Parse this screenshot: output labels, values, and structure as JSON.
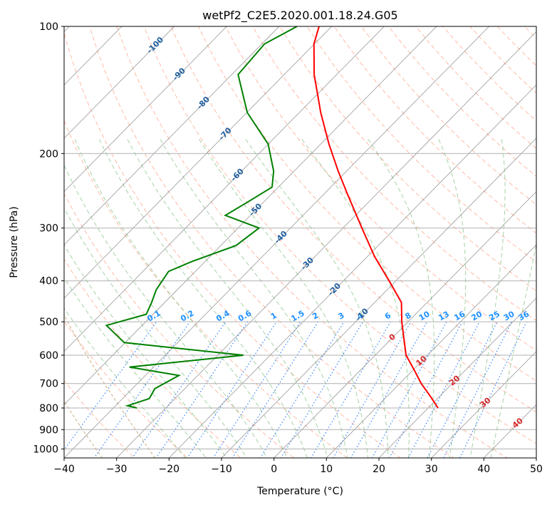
{
  "chart_data": {
    "type": "line",
    "chart_kind": "skew-T log-p diagram",
    "title": "wetPf2_C2E5.2020.001.18.24.G05",
    "xlabel": "Temperature (°C)",
    "ylabel": "Pressure (hPa)",
    "xlim": [
      -40,
      50
    ],
    "ylim": [
      1050,
      100
    ],
    "y_scale": "log",
    "x_ticks": [
      "−40",
      "−30",
      "−20",
      "−10",
      "0",
      "10",
      "20",
      "30",
      "40",
      "50"
    ],
    "x_tick_values": [
      -40,
      -30,
      -20,
      -10,
      0,
      10,
      20,
      30,
      40,
      50
    ],
    "y_ticks": [
      "100",
      "200",
      "300",
      "400",
      "500",
      "600",
      "700",
      "800",
      "900",
      "1000"
    ],
    "y_tick_values": [
      100,
      200,
      300,
      400,
      500,
      600,
      700,
      800,
      900,
      1000
    ],
    "grid": true,
    "colors": {
      "temperature": "#ff0000",
      "dewpoint": "#008000",
      "dry_adiabat": "#ff8c69",
      "moist_adiabat": "#7fbf7f",
      "mixing_ratio": "#1f77ff",
      "isotherm": "#808080",
      "theta_e": "#d2b48c",
      "isotherm_label": "#1f5f9f",
      "mixing_ratio_label": "#1e90ff",
      "adiabat_label": "#d62728"
    },
    "isotherm_labels": [
      {
        "text": "-100",
        "t": -100,
        "p": 111
      },
      {
        "text": "-90",
        "t": -90,
        "p": 130
      },
      {
        "text": "-80",
        "t": -80,
        "p": 152
      },
      {
        "text": "-70",
        "t": -70,
        "p": 180
      },
      {
        "text": "-60",
        "t": -60,
        "p": 225
      },
      {
        "text": "-50",
        "t": -50,
        "p": 272
      },
      {
        "text": "-40",
        "t": -40,
        "p": 316
      },
      {
        "text": "-30",
        "t": -30,
        "p": 365
      },
      {
        "text": "-20",
        "t": -20,
        "p": 420
      },
      {
        "text": "-10",
        "t": -10,
        "p": 482
      }
    ],
    "mixing_ratio_labels": [
      "0.1",
      "0.2",
      "0.4",
      "0.6",
      "1",
      "1.5",
      "2",
      "3",
      "4",
      "6",
      "8",
      "10",
      "13",
      "16",
      "20",
      "25",
      "30",
      "36"
    ],
    "mixing_ratio_values": [
      0.1,
      0.2,
      0.4,
      0.6,
      1,
      1.5,
      2,
      3,
      4,
      6,
      8,
      10,
      13,
      16,
      20,
      25,
      30,
      36
    ],
    "adiabat_labels": [
      {
        "text": "0",
        "t": 0,
        "p": 545
      },
      {
        "text": "10",
        "t": 10,
        "p": 620
      },
      {
        "text": "20",
        "t": 20,
        "p": 690
      },
      {
        "text": "30",
        "t": 30,
        "p": 778
      },
      {
        "text": "40",
        "t": 40,
        "p": 870
      }
    ],
    "series": [
      {
        "key": "temperature",
        "points": [
          {
            "p": 100,
            "t": -72.4
          },
          {
            "p": 110,
            "t": -70.1
          },
          {
            "p": 130,
            "t": -64.3
          },
          {
            "p": 160,
            "t": -55.9
          },
          {
            "p": 190,
            "t": -48.4
          },
          {
            "p": 220,
            "t": -41.6
          },
          {
            "p": 250,
            "t": -35.4
          },
          {
            "p": 300,
            "t": -26.4
          },
          {
            "p": 350,
            "t": -18.7
          },
          {
            "p": 400,
            "t": -11.3
          },
          {
            "p": 450,
            "t": -4.9
          },
          {
            "p": 500,
            "t": -1.2
          },
          {
            "p": 550,
            "t": 2.5
          },
          {
            "p": 600,
            "t": 5.9
          },
          {
            "p": 650,
            "t": 10.2
          },
          {
            "p": 700,
            "t": 14.1
          },
          {
            "p": 750,
            "t": 18.2
          },
          {
            "p": 800,
            "t": 21.9
          }
        ]
      },
      {
        "key": "dewpoint",
        "points": [
          {
            "p": 100,
            "t": -76.6
          },
          {
            "p": 110,
            "t": -79.5
          },
          {
            "p": 130,
            "t": -78.8
          },
          {
            "p": 160,
            "t": -69.9
          },
          {
            "p": 190,
            "t": -60.0
          },
          {
            "p": 220,
            "t": -53.9
          },
          {
            "p": 240,
            "t": -51.2
          },
          {
            "p": 260,
            "t": -53.0
          },
          {
            "p": 280,
            "t": -54.8
          },
          {
            "p": 300,
            "t": -46.0
          },
          {
            "p": 330,
            "t": -47.1
          },
          {
            "p": 360,
            "t": -52.5
          },
          {
            "p": 380,
            "t": -55.1
          },
          {
            "p": 420,
            "t": -54.0
          },
          {
            "p": 450,
            "t": -52.5
          },
          {
            "p": 480,
            "t": -51.3
          },
          {
            "p": 510,
            "t": -56.8
          },
          {
            "p": 560,
            "t": -50.2
          },
          {
            "p": 600,
            "t": -25.1
          },
          {
            "p": 640,
            "t": -44.6
          },
          {
            "p": 670,
            "t": -33.6
          },
          {
            "p": 720,
            "t": -35.7
          },
          {
            "p": 760,
            "t": -34.9
          },
          {
            "p": 790,
            "t": -37.7
          },
          {
            "p": 800,
            "t": -35.5
          }
        ]
      }
    ]
  }
}
